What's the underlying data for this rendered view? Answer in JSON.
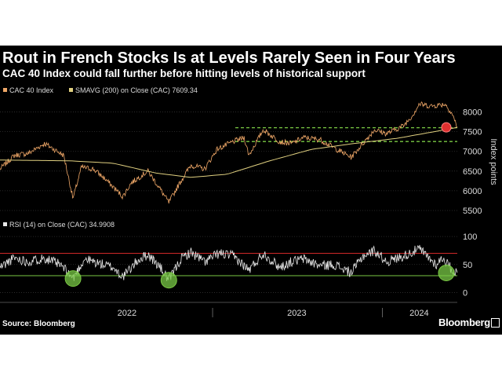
{
  "title": "Rout in French Stocks Is at Levels Rarely Seen in Four Years",
  "subtitle": "CAC 40 Index could fall further before hitting levels of historical support",
  "source": "Source: Bloomberg",
  "brand": "Bloomberg",
  "colors": {
    "background": "#000000",
    "cac": "#f0a868",
    "smavg": "#e0d080",
    "rsi": "#e8e8e8",
    "support": "#7ac943",
    "overbought": "#d02828",
    "oversold": "#7ac943",
    "marker": "#e03030"
  },
  "chart_data": [
    {
      "type": "line",
      "legend": [
        {
          "label": "CAC 40 Index",
          "color": "#f0a868"
        },
        {
          "label": "SMAVG (200)  on Close (CAC) 7609.34",
          "color": "#e0d080"
        }
      ],
      "ylabel": "Index points",
      "yticks": [
        8000,
        7500,
        7000,
        6500,
        6000,
        5500
      ],
      "ylim": [
        5400,
        8350
      ],
      "xlim": [
        "2021-10-01",
        "2024-06-10"
      ],
      "xticks": [
        "2022",
        "2023",
        "2024"
      ],
      "series": [
        {
          "name": "CAC 40 Index",
          "x": [
            "2021-10-01",
            "2021-11-01",
            "2021-12-01",
            "2022-01-05",
            "2022-02-15",
            "2022-03-07",
            "2022-03-25",
            "2022-04-20",
            "2022-05-15",
            "2022-06-22",
            "2022-07-10",
            "2022-08-15",
            "2022-09-10",
            "2022-09-29",
            "2022-10-20",
            "2022-11-15",
            "2022-12-15",
            "2023-01-10",
            "2023-02-15",
            "2023-03-10",
            "2023-03-20",
            "2023-04-20",
            "2023-05-25",
            "2023-06-20",
            "2023-07-15",
            "2023-08-20",
            "2023-09-25",
            "2023-10-26",
            "2023-11-20",
            "2023-12-15",
            "2024-01-10",
            "2024-02-15",
            "2024-03-05",
            "2024-03-20",
            "2024-04-15",
            "2024-05-15",
            "2024-05-30",
            "2024-06-10"
          ],
          "values": [
            6550,
            6900,
            6950,
            7200,
            6900,
            5800,
            6600,
            6550,
            6300,
            5850,
            6200,
            6500,
            6050,
            5700,
            6150,
            6650,
            6550,
            7050,
            7250,
            7350,
            6900,
            7550,
            7250,
            7200,
            7350,
            7300,
            7050,
            6850,
            7200,
            7550,
            7450,
            7650,
            7900,
            8200,
            8150,
            8200,
            7950,
            7610
          ]
        },
        {
          "name": "SMAVG (200)",
          "x": [
            "2021-10-01",
            "2022-03-01",
            "2022-06-01",
            "2022-09-01",
            "2022-11-15",
            "2023-02-01",
            "2023-05-01",
            "2023-08-01",
            "2023-11-01",
            "2024-02-01",
            "2024-05-01",
            "2024-06-10"
          ],
          "values": [
            6780,
            6760,
            6700,
            6450,
            6340,
            6420,
            6750,
            7050,
            7200,
            7330,
            7520,
            7609
          ]
        }
      ],
      "support_levels": [
        7600,
        7250
      ],
      "marker": {
        "x": "2024-06-10",
        "y": 7609.34
      }
    },
    {
      "type": "line",
      "legend": [
        {
          "label": "RSI (14)  on Close (CAC) 34.9908",
          "color": "#e8e8e8"
        }
      ],
      "yticks": [
        100,
        50,
        0
      ],
      "ylim": [
        -5,
        110
      ],
      "xlim": [
        "2021-10-01",
        "2024-06-10"
      ],
      "reference_lines": {
        "overbought": 70,
        "oversold": 30
      },
      "series": [
        {
          "name": "RSI (14)",
          "x": [
            "2021-10-01",
            "2021-11-01",
            "2021-12-01",
            "2022-01-05",
            "2022-02-10",
            "2022-03-07",
            "2022-04-01",
            "2022-05-01",
            "2022-06-01",
            "2022-06-22",
            "2022-07-25",
            "2022-08-15",
            "2022-09-10",
            "2022-09-29",
            "2022-10-25",
            "2022-11-15",
            "2022-12-15",
            "2023-01-15",
            "2023-02-15",
            "2023-03-20",
            "2023-04-20",
            "2023-05-25",
            "2023-06-20",
            "2023-07-15",
            "2023-08-20",
            "2023-09-20",
            "2023-10-26",
            "2023-11-20",
            "2023-12-15",
            "2024-01-10",
            "2024-02-15",
            "2024-03-20",
            "2024-04-25",
            "2024-05-10",
            "2024-05-30",
            "2024-06-10"
          ],
          "values": [
            45,
            62,
            55,
            62,
            48,
            25,
            60,
            52,
            45,
            28,
            58,
            68,
            45,
            22,
            60,
            72,
            55,
            70,
            65,
            40,
            70,
            45,
            55,
            60,
            48,
            50,
            35,
            65,
            75,
            55,
            65,
            78,
            50,
            62,
            40,
            35
          ]
        }
      ],
      "markers": [
        {
          "x": "2022-03-07",
          "y": 25
        },
        {
          "x": "2022-09-29",
          "y": 22
        },
        {
          "x": "2024-06-10",
          "y": 35
        }
      ]
    }
  ]
}
